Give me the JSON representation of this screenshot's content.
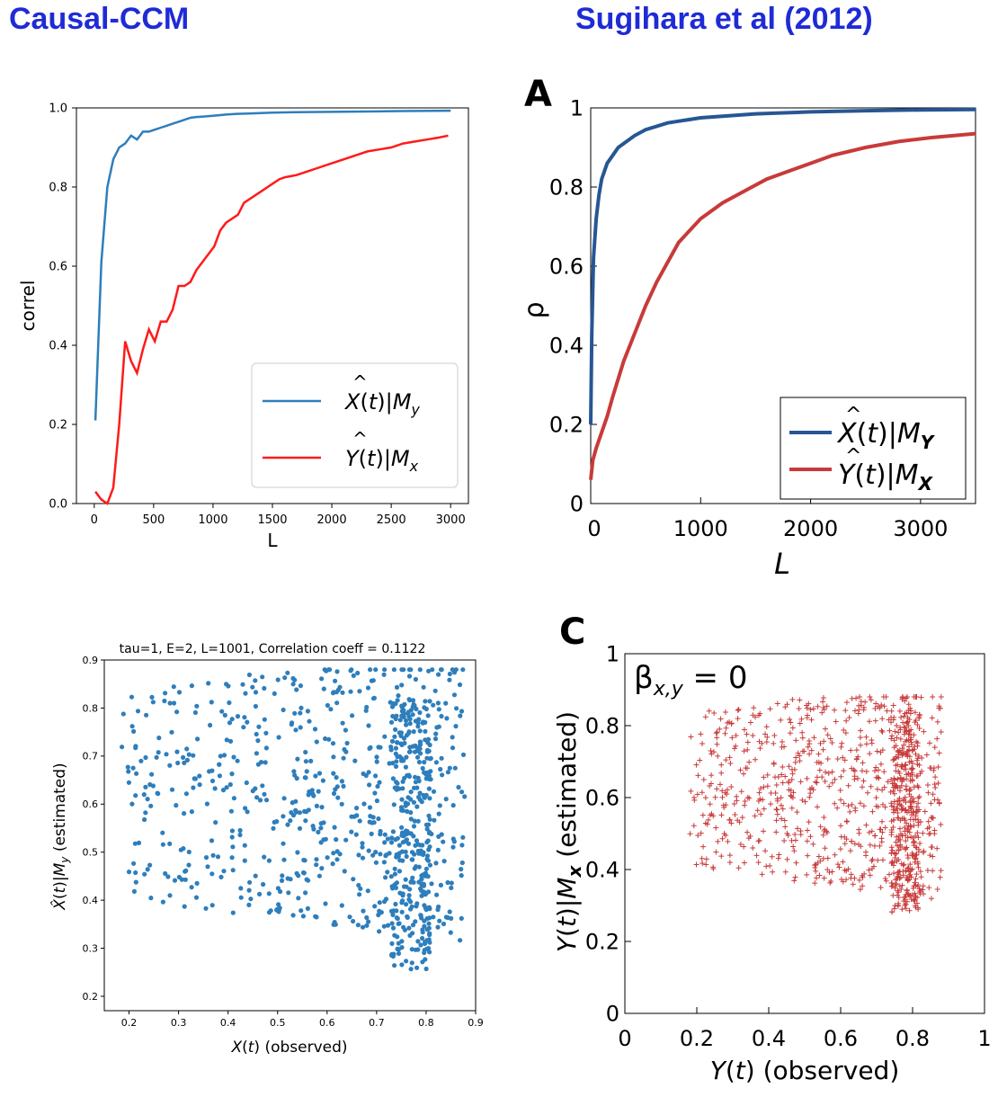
{
  "headings": {
    "left": "Causal-CCM",
    "right": "Sugihara et al (2012)"
  },
  "colors": {
    "heading": "#1f2bd6",
    "blue": "#2e7ebc",
    "red": "#ff1a1a",
    "darkblue": "#275693",
    "darkred": "#c83a3a"
  },
  "chart_data": [
    {
      "type": "line",
      "panel": "",
      "title": "",
      "xlabel": "L",
      "ylabel": "correl",
      "xlim": [
        -150,
        3150
      ],
      "ylim": [
        0,
        1
      ],
      "xticks": [
        0,
        500,
        1000,
        1500,
        2000,
        2500,
        3000
      ],
      "yticks": [
        0.0,
        0.2,
        0.4,
        0.6,
        0.8,
        1.0
      ],
      "legend_position": "lower-right",
      "series": [
        {
          "name": "X̂(t)|My",
          "color": "#2e7ebc",
          "x": [
            10,
            60,
            110,
            160,
            210,
            260,
            310,
            360,
            410,
            460,
            510,
            560,
            610,
            660,
            710,
            760,
            810,
            860,
            910,
            1000,
            1100,
            1200,
            1300,
            1400,
            1500,
            1700,
            2000,
            2300,
            2600,
            3000
          ],
          "y": [
            0.21,
            0.61,
            0.8,
            0.87,
            0.9,
            0.91,
            0.93,
            0.92,
            0.94,
            0.94,
            0.945,
            0.95,
            0.955,
            0.96,
            0.965,
            0.97,
            0.975,
            0.977,
            0.978,
            0.98,
            0.983,
            0.985,
            0.986,
            0.987,
            0.988,
            0.989,
            0.99,
            0.991,
            0.992,
            0.993
          ]
        },
        {
          "name": "Ŷ(t)|Mx",
          "color": "#ff1a1a",
          "x": [
            10,
            60,
            110,
            160,
            210,
            260,
            310,
            360,
            410,
            460,
            510,
            560,
            610,
            660,
            710,
            760,
            810,
            860,
            910,
            960,
            1010,
            1060,
            1110,
            1160,
            1210,
            1260,
            1310,
            1360,
            1410,
            1460,
            1510,
            1560,
            1610,
            1700,
            1800,
            1900,
            2000,
            2100,
            2200,
            2300,
            2400,
            2500,
            2600,
            2700,
            2800,
            2900,
            2980
          ],
          "y": [
            0.03,
            0.01,
            0.0,
            0.04,
            0.2,
            0.41,
            0.36,
            0.33,
            0.39,
            0.44,
            0.41,
            0.46,
            0.46,
            0.49,
            0.55,
            0.55,
            0.56,
            0.59,
            0.61,
            0.63,
            0.65,
            0.69,
            0.71,
            0.72,
            0.73,
            0.76,
            0.77,
            0.78,
            0.79,
            0.8,
            0.81,
            0.82,
            0.825,
            0.83,
            0.84,
            0.85,
            0.86,
            0.87,
            0.88,
            0.89,
            0.895,
            0.9,
            0.91,
            0.915,
            0.92,
            0.925,
            0.93
          ]
        }
      ]
    },
    {
      "type": "line",
      "panel": "A",
      "title": "",
      "xlabel": "L",
      "ylabel": "ρ",
      "xlim": [
        0,
        3500
      ],
      "ylim": [
        0,
        1
      ],
      "xticks": [
        0,
        1000,
        2000,
        3000
      ],
      "yticks": [
        0,
        0.2,
        0.4,
        0.6,
        0.8,
        1
      ],
      "legend_position": "lower-right",
      "series": [
        {
          "name": "X̂(t)|MY",
          "color": "#275693",
          "x": [
            0,
            10,
            25,
            50,
            75,
            100,
            150,
            200,
            250,
            300,
            400,
            500,
            700,
            1000,
            1500,
            2000,
            2500,
            3000,
            3500
          ],
          "y": [
            0.2,
            0.43,
            0.62,
            0.72,
            0.78,
            0.82,
            0.86,
            0.88,
            0.9,
            0.91,
            0.93,
            0.945,
            0.962,
            0.975,
            0.985,
            0.99,
            0.993,
            0.995,
            0.996
          ]
        },
        {
          "name": "Ŷ(t)|MX",
          "color": "#c83a3a",
          "x": [
            0,
            20,
            50,
            100,
            150,
            200,
            300,
            400,
            500,
            600,
            700,
            800,
            1000,
            1200,
            1400,
            1600,
            1800,
            2000,
            2200,
            2500,
            2800,
            3100,
            3500
          ],
          "y": [
            0.06,
            0.11,
            0.14,
            0.18,
            0.22,
            0.27,
            0.36,
            0.43,
            0.5,
            0.56,
            0.61,
            0.66,
            0.72,
            0.76,
            0.79,
            0.82,
            0.84,
            0.86,
            0.88,
            0.9,
            0.915,
            0.925,
            0.935
          ]
        }
      ]
    },
    {
      "type": "scatter",
      "panel": "",
      "title": "tau=1, E=2, L=1001, Correlation coeff = 0.1122",
      "xlabel": "X(t) (observed)",
      "ylabel": "X̂(t)|My (estimated)",
      "xlim": [
        0.15,
        0.9
      ],
      "ylim": [
        0.17,
        0.9
      ],
      "xticks": [
        0.2,
        0.3,
        0.4,
        0.5,
        0.6,
        0.7,
        0.8,
        0.9
      ],
      "yticks": [
        0.2,
        0.3,
        0.4,
        0.5,
        0.6,
        0.7,
        0.8,
        0.9
      ],
      "marker": "dot",
      "color": "#2e7ebc",
      "points_note_count": 900
    },
    {
      "type": "scatter",
      "panel": "C",
      "title": "",
      "annotation": "βx,y = 0",
      "xlabel": "Y(t) (observed)",
      "ylabel": "Y(t)|Mx (estimated)",
      "xlim": [
        0,
        1
      ],
      "ylim": [
        0,
        1
      ],
      "xticks": [
        0,
        0.2,
        0.4,
        0.6,
        0.8,
        1
      ],
      "yticks": [
        0,
        0.2,
        0.4,
        0.6,
        0.8,
        1
      ],
      "marker": "plus",
      "color": "#c83a3a",
      "points_note_count": 1000
    }
  ]
}
